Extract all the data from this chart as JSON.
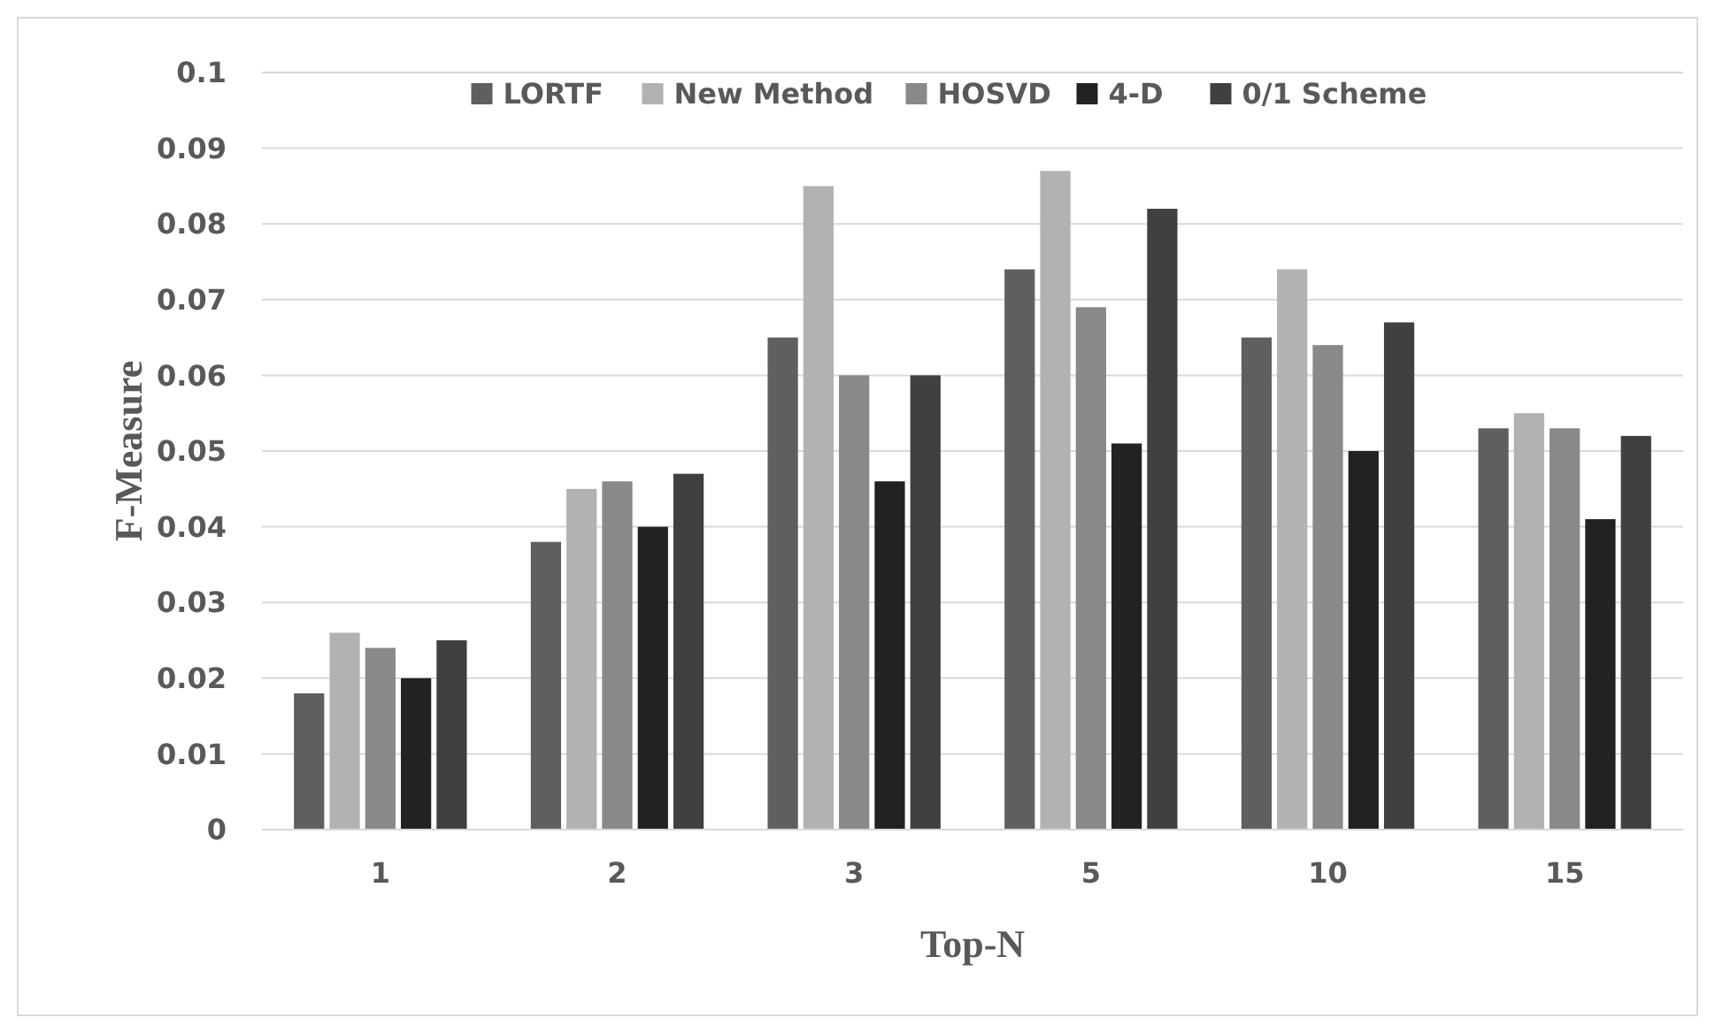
{
  "chart_data": {
    "type": "bar",
    "xlabel": "Top-N",
    "ylabel": "F-Measure",
    "categories": [
      "1",
      "2",
      "3",
      "5",
      "10",
      "15"
    ],
    "series": [
      {
        "name": "LORTF",
        "color": "#5f5f5f",
        "values": [
          0.018,
          0.038,
          0.065,
          0.074,
          0.065,
          0.053
        ]
      },
      {
        "name": "New Method",
        "color": "#b2b2b2",
        "values": [
          0.026,
          0.045,
          0.085,
          0.087,
          0.074,
          0.055
        ]
      },
      {
        "name": "HOSVD",
        "color": "#898989",
        "values": [
          0.024,
          0.046,
          0.06,
          0.069,
          0.064,
          0.053
        ]
      },
      {
        "name": "4-D",
        "color": "#222222",
        "values": [
          0.02,
          0.04,
          0.046,
          0.051,
          0.05,
          0.041
        ]
      },
      {
        "name": "0/1 Scheme",
        "color": "#404040",
        "values": [
          0.025,
          0.047,
          0.06,
          0.082,
          0.067,
          0.052
        ]
      }
    ],
    "ylim": [
      0,
      0.1
    ],
    "yticks": [
      0,
      0.01,
      0.02,
      0.03,
      0.04,
      0.05,
      0.06,
      0.07,
      0.08,
      0.09,
      0.1
    ],
    "grid": "y",
    "legend": "top"
  }
}
